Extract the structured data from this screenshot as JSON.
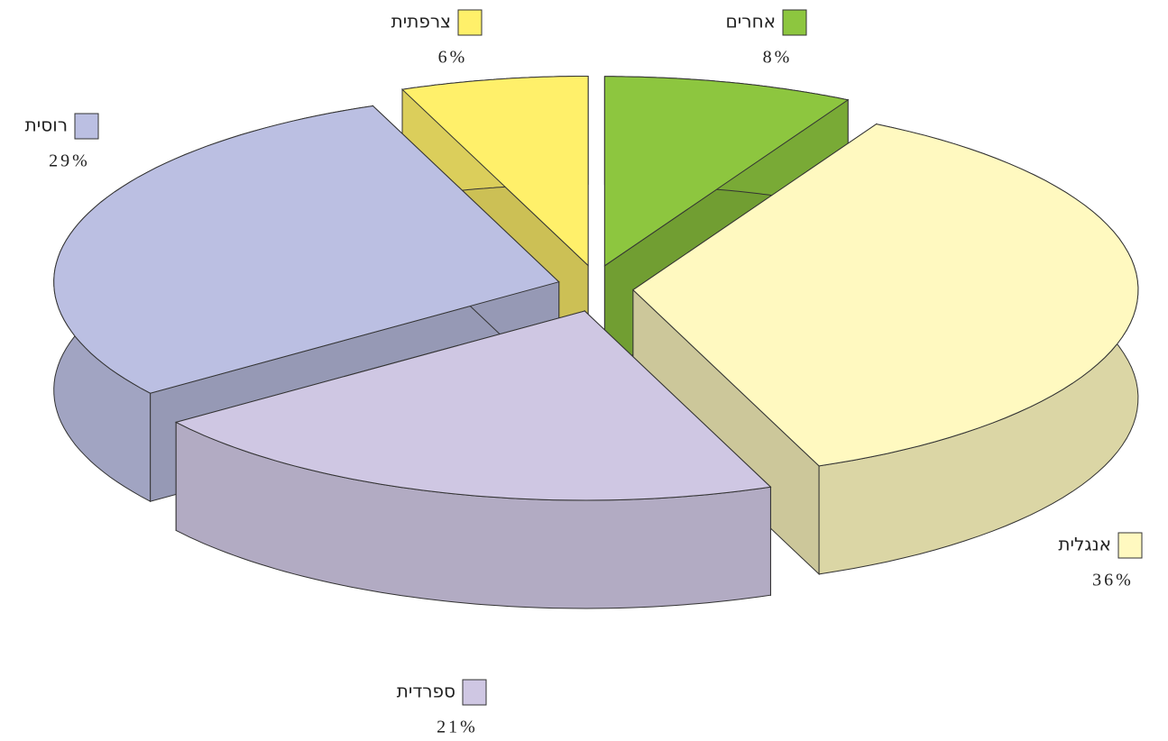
{
  "chart_data": {
    "type": "pie3d",
    "categories": [
      "אחרים",
      "אנגלית",
      "ספרדית",
      "רוסית",
      "צרפתית"
    ],
    "values": [
      8,
      36,
      21,
      29,
      6
    ],
    "value_labels": [
      "8%",
      "36%",
      "21%",
      "29%",
      "6%"
    ],
    "colors": [
      "#8dc63f",
      "#fff9c0",
      "#cfc7e3",
      "#bbbfe2",
      "#fff06a"
    ]
  }
}
